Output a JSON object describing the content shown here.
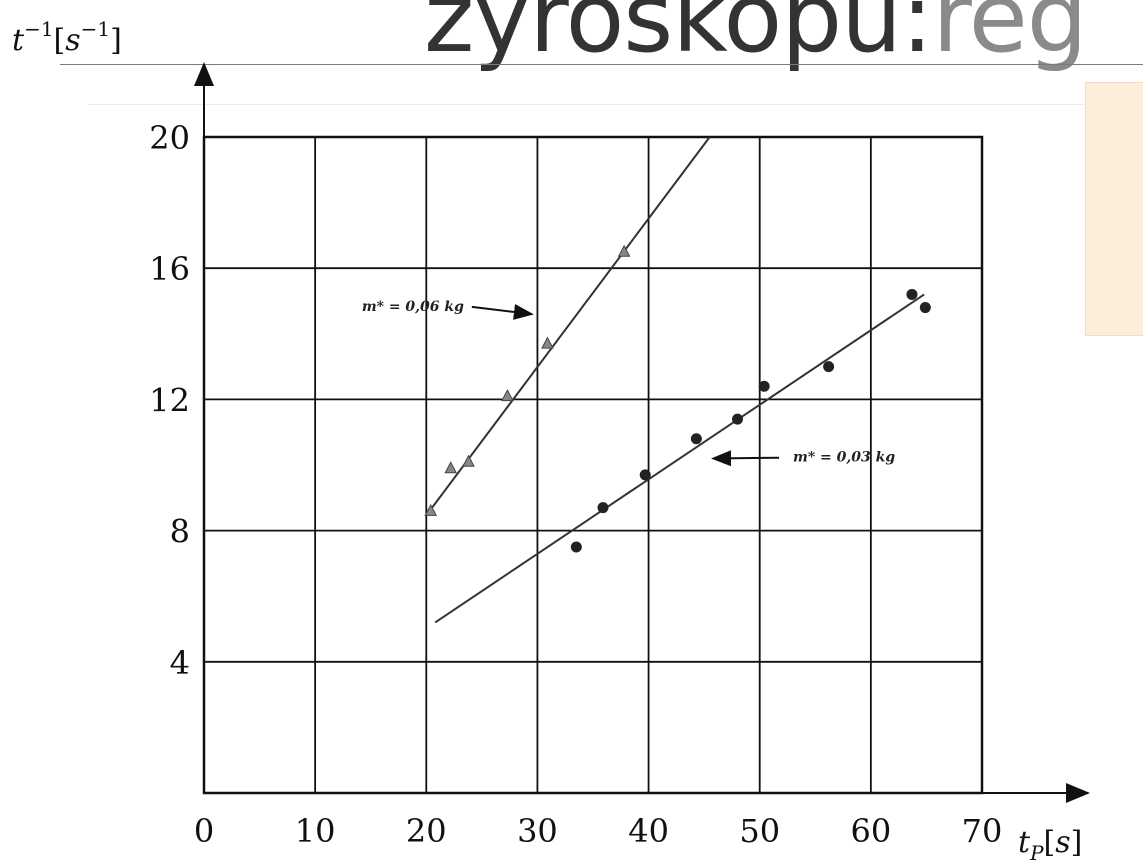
{
  "slide": {
    "title_main": "zyroskopu:",
    "title_accent": "reg"
  },
  "chart_data": {
    "type": "scatter",
    "xlabel": "t_P[s]",
    "ylabel": "t^-1[s^-1]",
    "xlim": [
      0,
      70
    ],
    "ylim": [
      0,
      20
    ],
    "x_ticks": [
      0,
      10,
      20,
      30,
      40,
      50,
      60,
      70
    ],
    "y_ticks": [
      4,
      8,
      12,
      16,
      20
    ],
    "x_tick_labels": [
      "0",
      "10",
      "20",
      "30",
      "40",
      "50",
      "60",
      "70"
    ],
    "y_tick_labels": [
      "4",
      "8",
      "12",
      "16",
      "20"
    ],
    "grid": true,
    "series": [
      {
        "name": "m* = 0,06 kg",
        "marker": "triangle",
        "points": [
          [
            20.4,
            8.6
          ],
          [
            22.2,
            9.9
          ],
          [
            23.8,
            10.1
          ],
          [
            27.3,
            12.1
          ],
          [
            30.9,
            13.7
          ],
          [
            37.8,
            16.5
          ]
        ],
        "fit": [
          [
            20.3,
            8.6
          ],
          [
            45.5,
            20.0
          ]
        ]
      },
      {
        "name": "m* = 0,03 kg",
        "marker": "circle",
        "points": [
          [
            33.5,
            7.5
          ],
          [
            35.9,
            8.7
          ],
          [
            39.7,
            9.7
          ],
          [
            44.3,
            10.8
          ],
          [
            48.0,
            11.4
          ],
          [
            50.4,
            12.4
          ],
          [
            56.2,
            13.0
          ],
          [
            63.7,
            15.2
          ],
          [
            64.9,
            14.8
          ]
        ],
        "fit": [
          [
            20.8,
            5.2
          ],
          [
            64.8,
            15.2
          ]
        ]
      }
    ],
    "annotations": [
      {
        "text": "m* = 0,06 kg",
        "series": 0,
        "label_at": [
          14.2,
          14.7
        ],
        "arrow_to": [
          29.5,
          14.6
        ]
      },
      {
        "text": "m* = 0,03 kg",
        "series": 1,
        "label_at": [
          53.0,
          10.1
        ],
        "arrow_to": [
          45.8,
          10.2
        ]
      }
    ]
  }
}
